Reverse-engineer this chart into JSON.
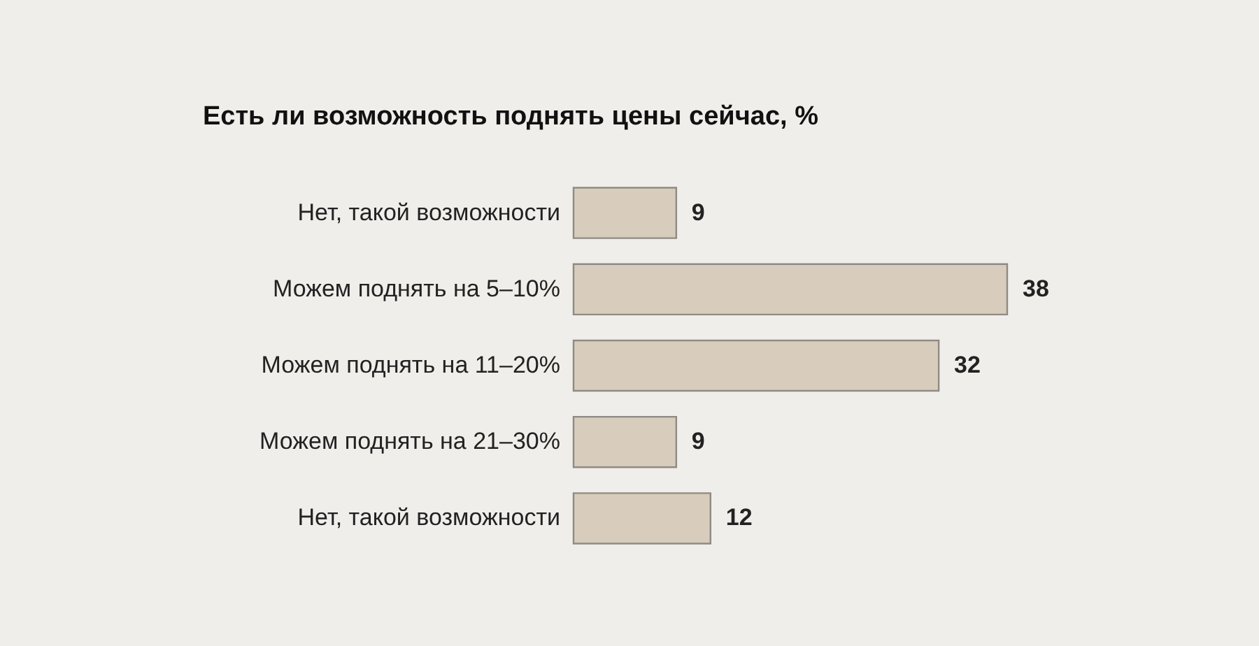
{
  "chart_data": {
    "type": "bar",
    "orientation": "horizontal",
    "title": "Есть ли возможность поднять цены сейчас, %",
    "categories": [
      "Нет, такой возможности",
      "Можем поднять на 5–10%",
      "Можем поднять на 11–20%",
      "Можем поднять на 21–30%",
      "Нет, такой возможности"
    ],
    "values": [
      9,
      38,
      32,
      9,
      12
    ],
    "color": "#d8cdbc",
    "data_labels": true
  }
}
